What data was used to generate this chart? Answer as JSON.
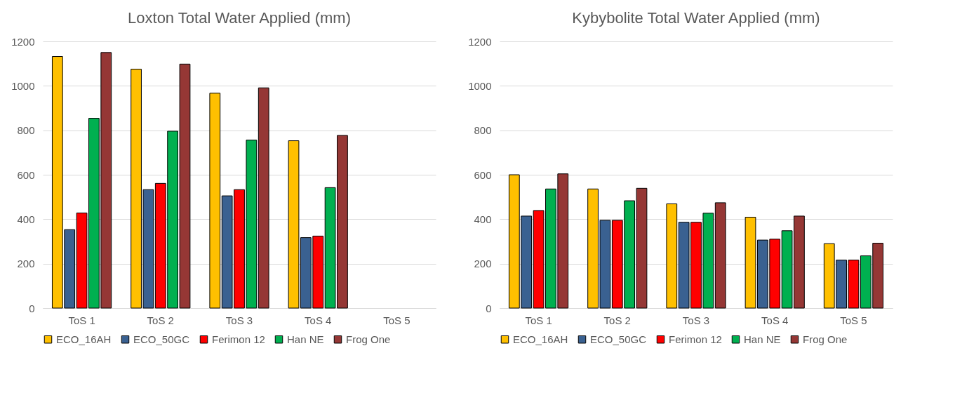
{
  "chart_data": [
    {
      "type": "bar",
      "title": "Loxton Total Water Applied (mm)",
      "categories": [
        "ToS 1",
        "ToS 2",
        "ToS 3",
        "ToS 4",
        "ToS 5"
      ],
      "ylim": [
        0,
        1200
      ],
      "yticks": [
        0,
        200,
        400,
        600,
        800,
        1000,
        1200
      ],
      "grid": "y",
      "legend": "bottom",
      "series": [
        {
          "name": "ECO_16AH",
          "color": "#ffc000",
          "values": [
            1132,
            1075,
            967,
            753,
            null
          ]
        },
        {
          "name": "ECO_50GC",
          "color": "#3a6191",
          "values": [
            353,
            533,
            505,
            317,
            null
          ]
        },
        {
          "name": "Ferimon 12",
          "color": "#ff0000",
          "values": [
            428,
            561,
            533,
            324,
            null
          ]
        },
        {
          "name": "Han NE",
          "color": "#00b050",
          "values": [
            854,
            796,
            756,
            542,
            null
          ]
        },
        {
          "name": "Frog One",
          "color": "#953735",
          "values": [
            1150,
            1098,
            991,
            777,
            null
          ]
        }
      ]
    },
    {
      "type": "bar",
      "title": "Kybybolite Total Water Applied (mm)",
      "categories": [
        "ToS 1",
        "ToS 2",
        "ToS 3",
        "ToS 4",
        "ToS 5"
      ],
      "ylim": [
        0,
        1200
      ],
      "yticks": [
        0,
        200,
        400,
        600,
        800,
        1000,
        1200
      ],
      "grid": "y",
      "legend": "bottom",
      "series": [
        {
          "name": "ECO_16AH",
          "color": "#ffc000",
          "values": [
            600,
            536,
            469,
            409,
            290
          ]
        },
        {
          "name": "ECO_50GC",
          "color": "#3a6191",
          "values": [
            414,
            395,
            386,
            306,
            216
          ]
        },
        {
          "name": "Ferimon 12",
          "color": "#ff0000",
          "values": [
            439,
            395,
            386,
            310,
            216
          ]
        },
        {
          "name": "Han NE",
          "color": "#00b050",
          "values": [
            536,
            483,
            427,
            348,
            235
          ]
        },
        {
          "name": "Frog One",
          "color": "#953735",
          "values": [
            604,
            539,
            474,
            414,
            292
          ]
        }
      ]
    }
  ]
}
